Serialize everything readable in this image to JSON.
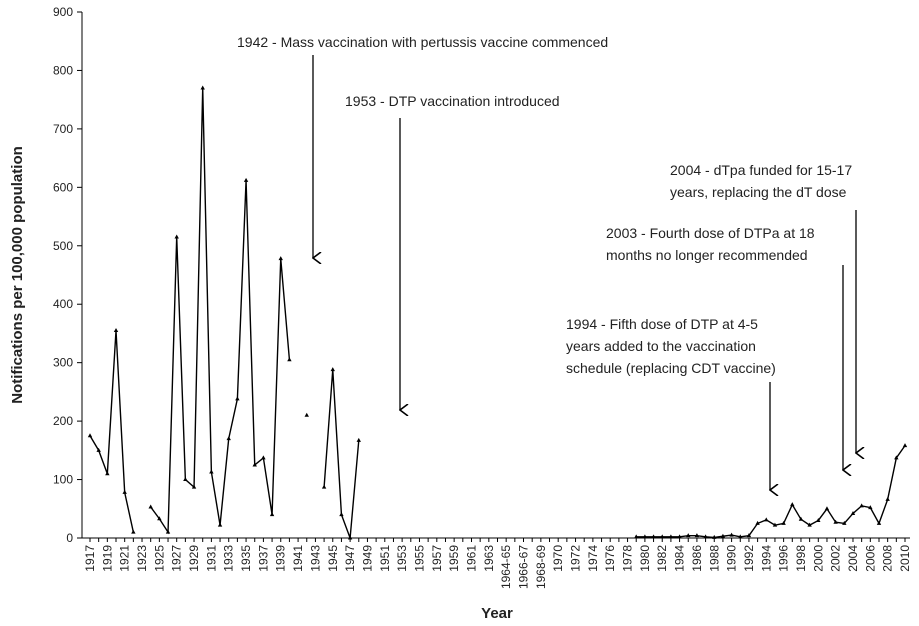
{
  "chart_data": {
    "type": "line",
    "y_label": "Notifications per 100,000 population",
    "x_label": "Year",
    "ylim": [
      0,
      900
    ],
    "yticks": [
      0,
      100,
      200,
      300,
      400,
      500,
      600,
      700,
      800,
      900
    ],
    "categories": [
      "1917",
      null,
      "1919",
      null,
      "1921",
      null,
      "1923",
      null,
      "1925",
      null,
      "1927",
      null,
      "1929",
      null,
      "1931",
      null,
      "1933",
      null,
      "1935",
      null,
      "1937",
      null,
      "1939",
      null,
      "1941",
      null,
      "1943",
      null,
      "1945",
      null,
      "1947",
      null,
      "1949",
      null,
      "1951",
      null,
      "1953",
      null,
      "1955",
      null,
      "1957",
      null,
      "1959",
      null,
      "1961",
      null,
      "1963",
      null,
      "1964-65",
      null,
      "1966-67",
      null,
      "1968-69",
      null,
      "1970",
      null,
      "1972",
      null,
      "1974",
      null,
      "1976",
      null,
      "1978",
      null,
      "1980",
      null,
      "1982",
      null,
      "1984",
      null,
      "1986",
      null,
      "1988",
      null,
      "1990",
      null,
      "1992",
      null,
      "1994",
      null,
      "1996",
      null,
      "1998",
      null,
      "2000",
      null,
      "2002",
      null,
      "2004",
      null,
      "2006",
      null,
      "2008",
      null,
      "2010"
    ],
    "series": [
      {
        "name": "Notifications",
        "color": "#000000",
        "values": [
          175,
          150,
          110,
          355,
          78,
          10,
          null,
          53,
          33,
          10,
          515,
          100,
          87,
          770,
          113,
          22,
          170,
          238,
          612,
          125,
          137,
          40,
          478,
          305,
          null,
          210,
          null,
          87,
          288,
          40,
          0,
          167,
          null,
          null,
          null,
          null,
          null,
          null,
          null,
          null,
          null,
          null,
          null,
          null,
          null,
          null,
          null,
          null,
          null,
          null,
          null,
          null,
          null,
          null,
          null,
          null,
          null,
          null,
          null,
          null,
          null,
          null,
          null,
          2,
          2,
          2,
          2,
          2,
          2,
          4,
          4,
          2,
          1,
          3,
          5,
          2,
          4,
          25,
          31,
          22,
          25,
          57,
          32,
          22,
          30,
          50,
          27,
          25,
          42,
          55,
          52,
          25,
          66,
          137,
          158
        ]
      }
    ],
    "annotations": [
      {
        "lines": [
          "1942 - Mass vaccination with pertussis vaccine commenced"
        ]
      },
      {
        "lines": [
          "1953 - DTP vaccination introduced"
        ]
      },
      {
        "lines": [
          "2004 - dTpa funded for 15-17",
          "years, replacing the dT dose"
        ]
      },
      {
        "lines": [
          "2003 - Fourth dose of DTPa at 18",
          "months no longer recommended"
        ]
      },
      {
        "lines": [
          "1994 - Fifth dose of DTP at 4-5",
          "years added to the vaccination",
          "schedule (replacing CDT vaccine)"
        ]
      }
    ]
  }
}
